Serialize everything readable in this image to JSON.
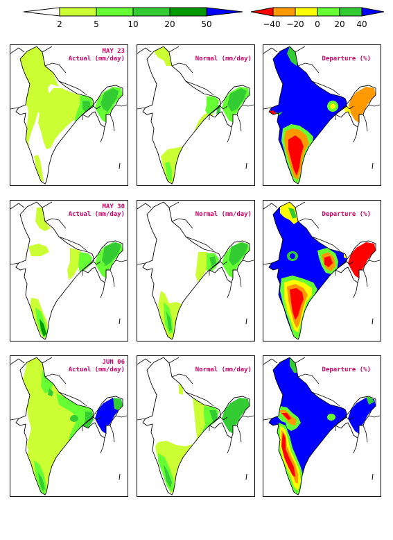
{
  "legends": {
    "rainfall": {
      "labels": [
        "2",
        "5",
        "10",
        "20",
        "50"
      ],
      "colors": [
        "#ffffff",
        "#ccff33",
        "#66ff33",
        "#33cc33",
        "#009900",
        "#0000ff"
      ]
    },
    "departure": {
      "labels": [
        "−40",
        "−20",
        "0",
        "20",
        "40"
      ],
      "colors": [
        "#ff0000",
        "#ff9900",
        "#ffff00",
        "#66ff33",
        "#33cc33",
        "#0000ff"
      ]
    }
  },
  "rows": [
    {
      "date": "MAY 23",
      "actual": "Actual (mm/day)",
      "normal": "Normal (mm/day)",
      "departure": "Departure (%)"
    },
    {
      "date": "MAY 30",
      "actual": "Actual (mm/day)",
      "normal": "Normal (mm/day)",
      "departure": "Departure (%)"
    },
    {
      "date": "JUN 06",
      "actual": "Actual (mm/day)",
      "normal": "Normal (mm/day)",
      "departure": "Departure (%)"
    }
  ]
}
